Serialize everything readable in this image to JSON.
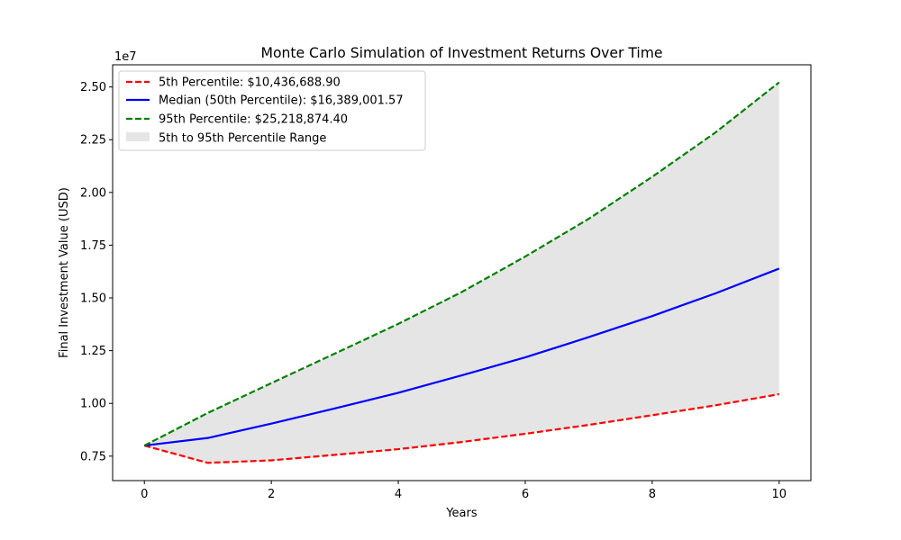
{
  "chart_data": {
    "type": "line",
    "title": "Monte Carlo Simulation of Investment Returns Over Time",
    "xlabel": "Years",
    "ylabel": "Final Investment Value (USD)",
    "y_offset_label": "1e7",
    "xlim": [
      -0.5,
      10.5
    ],
    "ylim": [
      6340000,
      26050000
    ],
    "x_ticks": [
      0,
      2,
      4,
      6,
      8,
      10
    ],
    "x_tick_labels": [
      "0",
      "2",
      "4",
      "6",
      "8",
      "10"
    ],
    "y_ticks": [
      7500000,
      10000000,
      12500000,
      15000000,
      17500000,
      20000000,
      22500000,
      25000000
    ],
    "y_tick_labels": [
      "0.75",
      "1.00",
      "1.25",
      "1.50",
      "1.75",
      "2.00",
      "2.25",
      "2.50"
    ],
    "x": [
      0,
      1,
      2,
      3,
      4,
      5,
      6,
      7,
      8,
      9,
      10
    ],
    "series": [
      {
        "name": "5th Percentile: $10,436,688.90",
        "color": "#ff0000",
        "style": "dashed",
        "values": [
          8000000,
          7180000,
          7300000,
          7560000,
          7830000,
          8170000,
          8560000,
          8980000,
          9440000,
          9910000,
          10436688.9
        ]
      },
      {
        "name": "Median (50th Percentile): $16,389,001.57",
        "color": "#0000ff",
        "style": "solid",
        "values": [
          8000000,
          8360000,
          9040000,
          9760000,
          10500000,
          11330000,
          12180000,
          13140000,
          14140000,
          15220000,
          16389001.57
        ]
      },
      {
        "name": "95th Percentile: $25,218,874.40",
        "color": "#008000",
        "style": "dashed",
        "values": [
          8000000,
          9550000,
          10960000,
          12360000,
          13770000,
          15280000,
          16960000,
          18750000,
          20740000,
          22850000,
          25218874.4
        ]
      }
    ],
    "band": {
      "name": "5th to 95th Percentile Range",
      "color": "#e5e5e5",
      "lower_series": 0,
      "upper_series": 2
    },
    "legend_position": "top-left",
    "grid": false
  }
}
